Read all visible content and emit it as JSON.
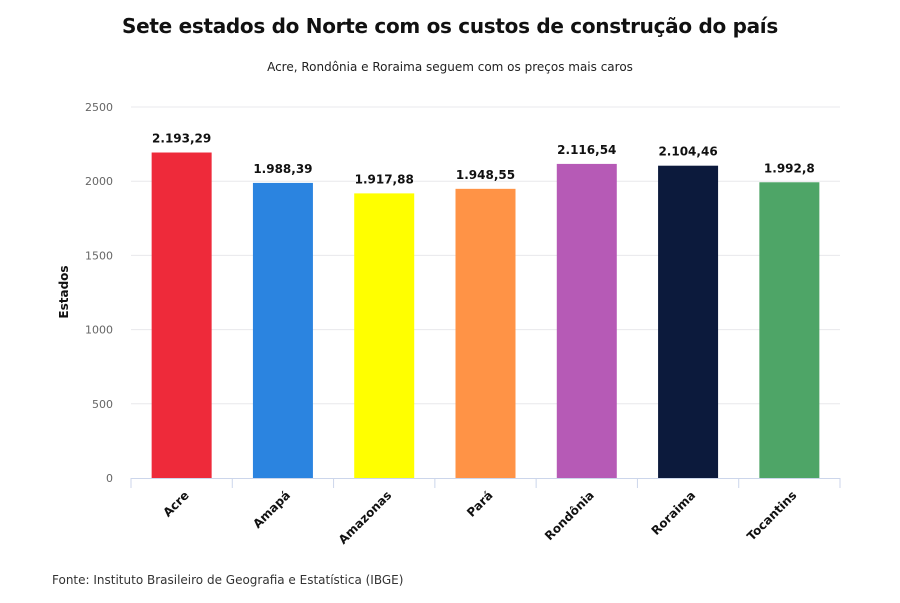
{
  "chart_data": {
    "type": "bar",
    "title": "Sete estados do Norte com os custos de construção do país",
    "subtitle": "Acre, Rondônia e Roraima seguem com os preços mais caros",
    "xlabel": "",
    "ylabel": "Estados",
    "ylim": [
      0,
      2500
    ],
    "yticks": [
      0,
      500,
      1000,
      1500,
      2000,
      2500
    ],
    "grid": true,
    "categories": [
      "Acre",
      "Amapá",
      "Amazonas",
      "Pará",
      "Rondônia",
      "Roraima",
      "Tocantins"
    ],
    "values": [
      2193.29,
      1988.39,
      1917.88,
      1948.55,
      2116.54,
      2104.46,
      1992.8
    ],
    "data_labels": [
      "2.193,29",
      "1.988,39",
      "1.917,88",
      "1.948,55",
      "2.116,54",
      "2.104,46",
      "1.992,8"
    ],
    "colors": [
      "#ee2a3a",
      "#2b84e0",
      "#ffff00",
      "#ff9346",
      "#b65ab6",
      "#0c1a3c",
      "#4ea567"
    ],
    "source": "Fonte: Instituto Brasileiro de Geografia e Estatística (IBGE)"
  }
}
